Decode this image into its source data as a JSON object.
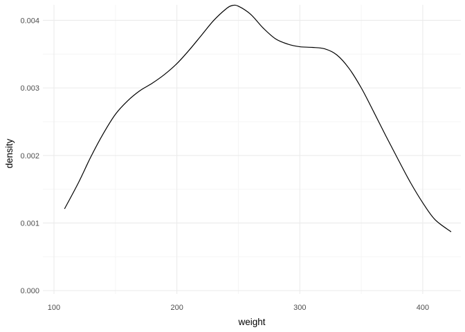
{
  "chart_data": {
    "type": "line",
    "title": "",
    "xlabel": "weight",
    "ylabel": "density",
    "xlim": [
      91,
      431
    ],
    "ylim": [
      -5e-05,
      0.00423
    ],
    "x_ticks": [
      100,
      200,
      300,
      400
    ],
    "x_tick_labels": [
      "100",
      "200",
      "300",
      "400"
    ],
    "y_ticks": [
      0,
      0.001,
      0.002,
      0.003,
      0.004
    ],
    "y_tick_labels": [
      "0.000",
      "0.001",
      "0.002",
      "0.003",
      "0.004"
    ],
    "grid": true,
    "legend": "none",
    "series": [
      {
        "x": [
          108.6,
          120,
          130,
          140,
          150,
          160,
          170,
          180,
          190,
          200,
          210,
          220,
          230,
          240,
          245,
          250,
          260,
          270,
          280,
          290,
          300,
          310,
          320,
          330,
          340,
          350,
          360,
          370,
          380,
          390,
          400,
          410,
          423.1
        ],
        "y": [
          0.00121,
          0.0016,
          0.00198,
          0.00232,
          0.00261,
          0.00281,
          0.00296,
          0.00307,
          0.0032,
          0.00336,
          0.00356,
          0.00378,
          0.004,
          0.00417,
          0.00422,
          0.00421,
          0.00409,
          0.00389,
          0.00373,
          0.00365,
          0.00361,
          0.0036,
          0.00358,
          0.00349,
          0.00329,
          0.003,
          0.00265,
          0.00229,
          0.00194,
          0.0016,
          0.0013,
          0.00105,
          0.00087
        ]
      }
    ],
    "colors": {
      "line": "#000000",
      "grid_major": "#ebebeb",
      "grid_minor": "#f5f5f5",
      "tick_text": "#4d4d4d"
    }
  }
}
